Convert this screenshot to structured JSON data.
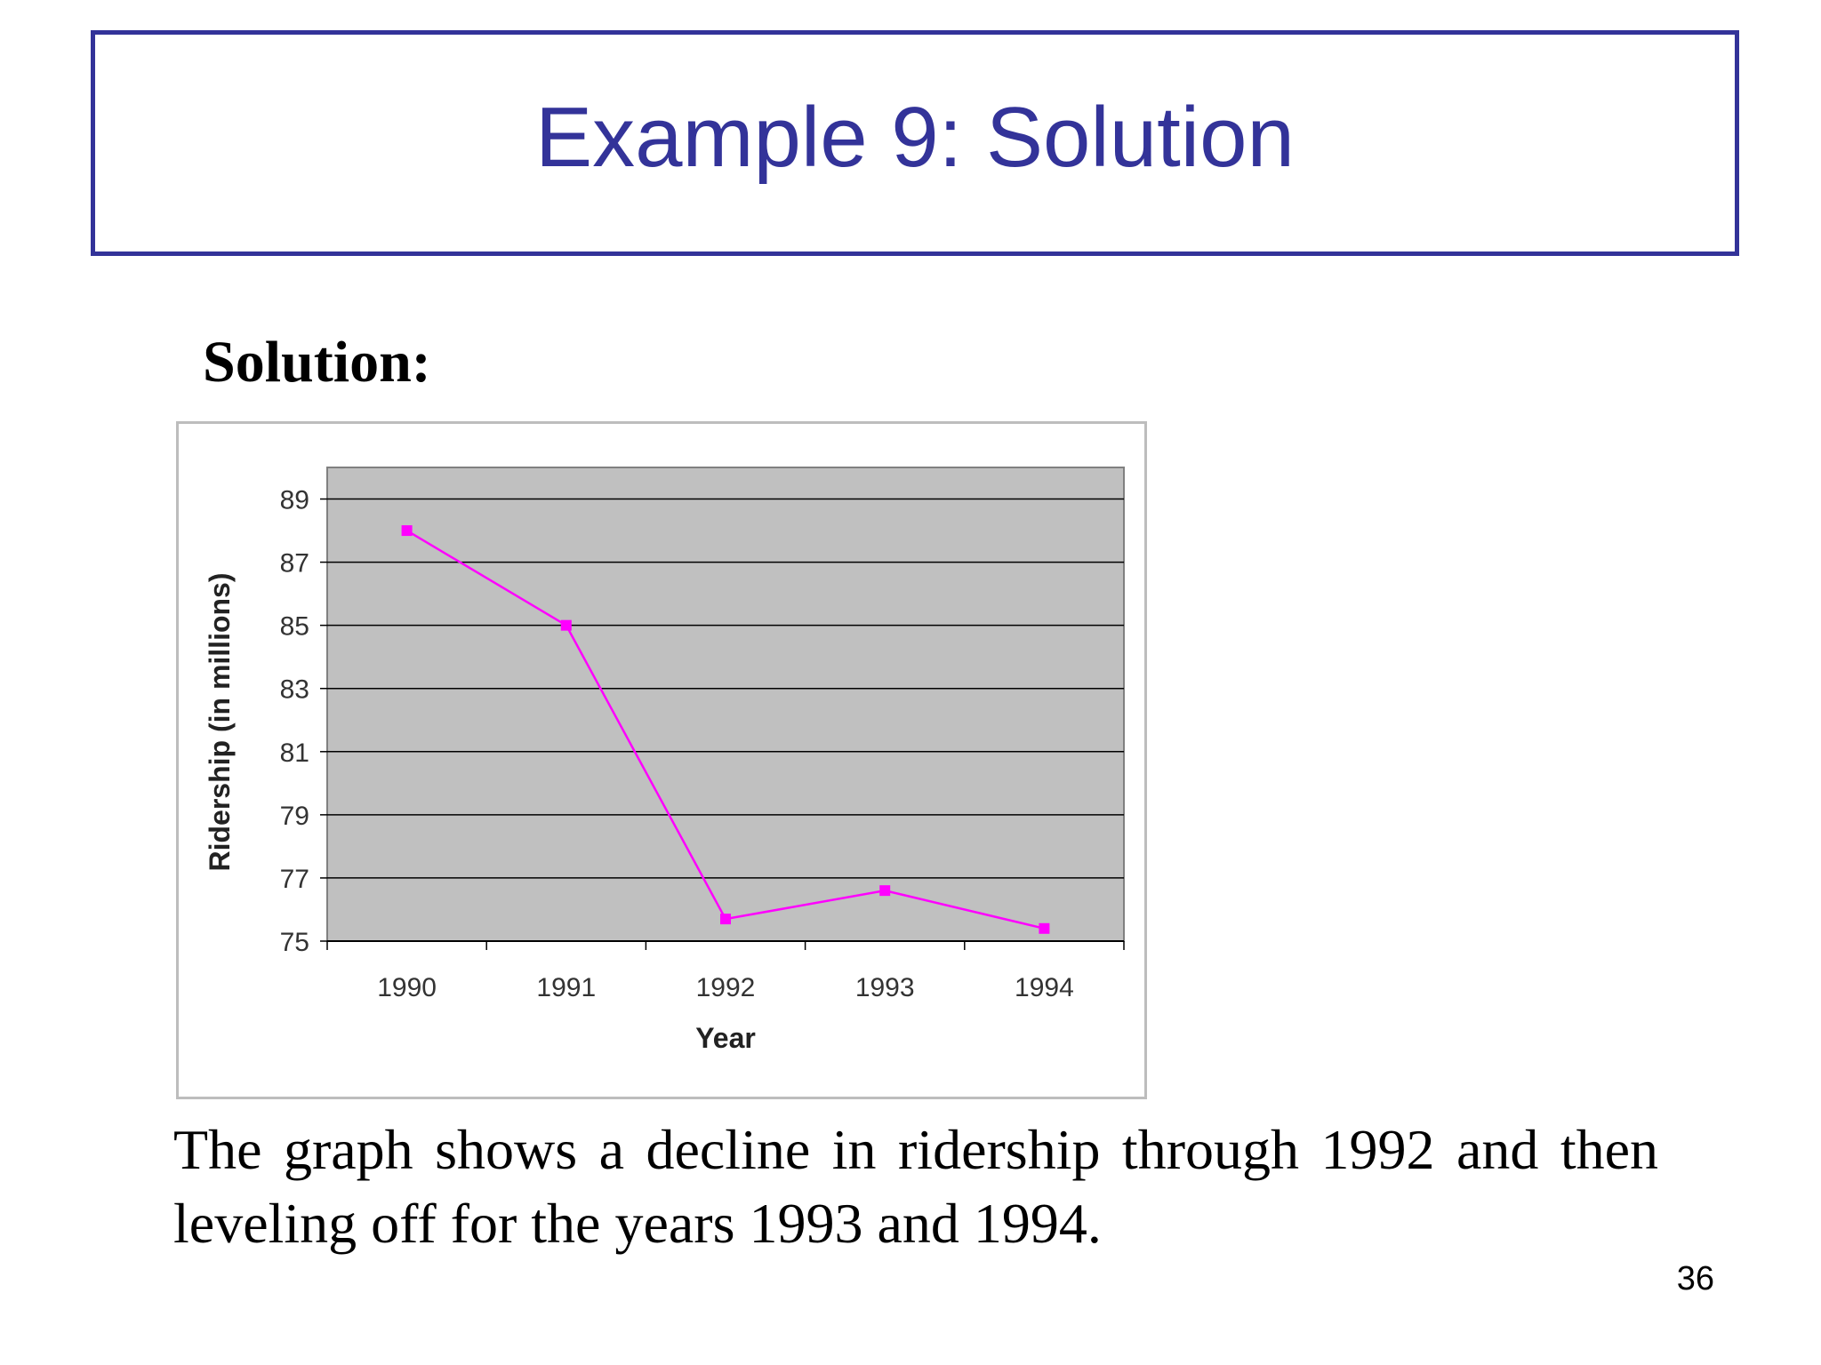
{
  "slide": {
    "title": "Example 9: Solution",
    "solution_label": "Solution:",
    "body_text": "The graph shows a decline in ridership through 1992 and then leveling off for the years 1993 and 1994.",
    "page_number": "36"
  },
  "colors": {
    "title": "#333399",
    "plot_background": "#c0c0c0",
    "series": "#ff00ff",
    "gridline": "#000000"
  },
  "chart_data": {
    "type": "line",
    "categories": [
      "1990",
      "1991",
      "1992",
      "1993",
      "1994"
    ],
    "series": [
      {
        "values": [
          88,
          85,
          75.7,
          76.6,
          75.4
        ]
      }
    ],
    "xlabel": "Year",
    "ylabel": "Ridership (in millions)",
    "ylim": [
      75,
      90
    ],
    "yticks": [
      75,
      77,
      79,
      81,
      83,
      85,
      87,
      89
    ],
    "grid": true,
    "legend": "none",
    "marker": "square"
  }
}
